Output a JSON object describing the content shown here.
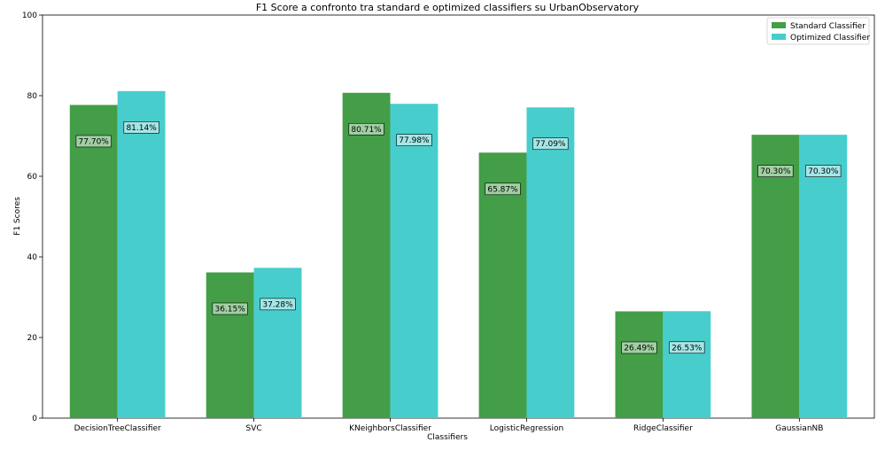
{
  "chart_data": {
    "type": "bar",
    "title": "F1 Score a confronto tra standard e optimized classifiers su UrbanObservatory",
    "xlabel": "Classifiers",
    "ylabel": "F1 Scores",
    "ylim": [
      0,
      100
    ],
    "yticks": [
      0,
      20,
      40,
      60,
      80,
      100
    ],
    "grid": false,
    "legend_position": "top-right",
    "categories": [
      "DecisionTreeClassifier",
      "SVC",
      "KNeighborsClassifier",
      "LogisticRegression",
      "RidgeClassifier",
      "GaussianNB"
    ],
    "series": [
      {
        "name": "Standard Classifier",
        "color": "#439e47",
        "values": [
          77.7,
          36.15,
          80.71,
          65.87,
          26.49,
          70.3
        ],
        "labels": [
          "77.70%",
          "36.15%",
          "80.71%",
          "65.87%",
          "26.49%",
          "70.30%"
        ]
      },
      {
        "name": "Optimized Classifier",
        "color": "#48cdcd",
        "values": [
          81.14,
          37.28,
          77.98,
          77.09,
          26.53,
          70.3
        ],
        "labels": [
          "81.14%",
          "37.28%",
          "77.98%",
          "77.09%",
          "26.53%",
          "70.30%"
        ]
      }
    ]
  }
}
